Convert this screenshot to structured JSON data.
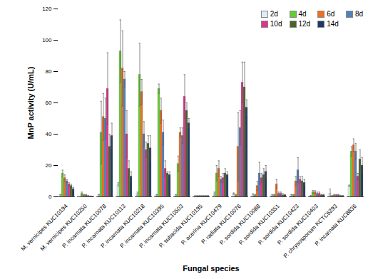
{
  "chart_data": {
    "type": "bar",
    "x_label": "Fungal species",
    "y_label": "MnP activity (U/mL)",
    "categories": [
      "M. vernicipes KUC10194",
      "M. vernicipes KUC10250",
      "P. incarnata KUC10078",
      "P. incarnata KUC10113",
      "P. incarnata KUC10218",
      "P. incarnata KUC10395",
      "P. incarnata KUC10503",
      "P. subacida KUC10195",
      "P. acerina KUC10479",
      "P. radiata KUC10076",
      "P. sordida KUC10088",
      "P. sordida KUC10351",
      "P. sordida KUC10423",
      "P. sordida KUC10403",
      "P. chrysosporium KCTC6293",
      "P. incarnata KUC8836"
    ],
    "series": [
      {
        "name": "2d",
        "color": "#dbeef4",
        "values": [
          1,
          0,
          1,
          8,
          2,
          1,
          1,
          0.5,
          2,
          2,
          1,
          1,
          1,
          0.5,
          2,
          7
        ],
        "errors": [
          0.5,
          0,
          0.5,
          1,
          1,
          0.5,
          0.5,
          0.2,
          1,
          0.5,
          1,
          0.5,
          0.5,
          0.3,
          3,
          0.5
        ]
      },
      {
        "name": "4d",
        "color": "#66cc33",
        "values": [
          15,
          2,
          41,
          93,
          78,
          69,
          21,
          0.5,
          15,
          1,
          1,
          1,
          1,
          3,
          0.5,
          29
        ],
        "errors": [
          2,
          1,
          20,
          20,
          20,
          3,
          5,
          0.2,
          5,
          0.5,
          0.5,
          0.5,
          0.5,
          1,
          0.3,
          3
        ]
      },
      {
        "name": "6d",
        "color": "#f26c21",
        "values": [
          12,
          1,
          51,
          82,
          67,
          55,
          41,
          0.5,
          18,
          32,
          7,
          8,
          10,
          3,
          1,
          33
        ],
        "errors": [
          2,
          0.5,
          15,
          24,
          8,
          8,
          3,
          0.2,
          5,
          22,
          3,
          3,
          3,
          1,
          0.5,
          4
        ]
      },
      {
        "name": "8d",
        "color": "#4f81bd",
        "values": [
          10,
          1,
          50,
          75,
          40,
          41,
          39,
          0.5,
          11,
          44,
          15,
          2,
          17,
          2,
          1,
          29
        ],
        "errors": [
          1,
          0.5,
          13,
          5,
          8,
          8,
          5,
          0.2,
          2,
          11,
          7,
          1,
          8,
          1,
          0.5,
          5
        ]
      },
      {
        "name": "10d",
        "color": "#e0338a",
        "values": [
          8,
          0.5,
          69,
          40,
          30,
          18,
          64,
          0.5,
          12,
          73,
          12,
          2,
          11,
          2,
          1,
          13
        ],
        "errors": [
          1,
          0.3,
          23,
          15,
          5,
          5,
          14,
          0.2,
          3,
          13,
          3,
          1,
          2,
          1,
          0.5,
          2
        ]
      },
      {
        "name": "12d",
        "color": "#4f6228",
        "values": [
          7,
          0.3,
          32,
          18,
          34,
          15,
          55,
          0.5,
          15,
          70,
          14,
          1,
          10,
          1,
          0.5,
          24
        ],
        "errors": [
          1,
          0.2,
          8,
          5,
          5,
          1,
          5,
          0.2,
          3,
          16,
          4,
          1,
          3,
          0.5,
          0.3,
          6
        ]
      },
      {
        "name": "14d",
        "color": "#1f3864",
        "values": [
          5,
          0.2,
          39,
          13,
          31,
          14,
          47,
          0.5,
          14,
          57,
          16,
          1,
          9,
          1,
          0.5,
          20
        ],
        "errors": [
          1,
          0.1,
          8,
          3,
          8,
          2,
          3,
          0.2,
          2,
          5,
          4,
          0.5,
          2,
          0.5,
          0.3,
          5
        ]
      }
    ],
    "ylim": [
      0,
      120
    ],
    "yticks": [
      0,
      20,
      40,
      60,
      80,
      100,
      120
    ],
    "grid": false,
    "legend": "upper right"
  }
}
